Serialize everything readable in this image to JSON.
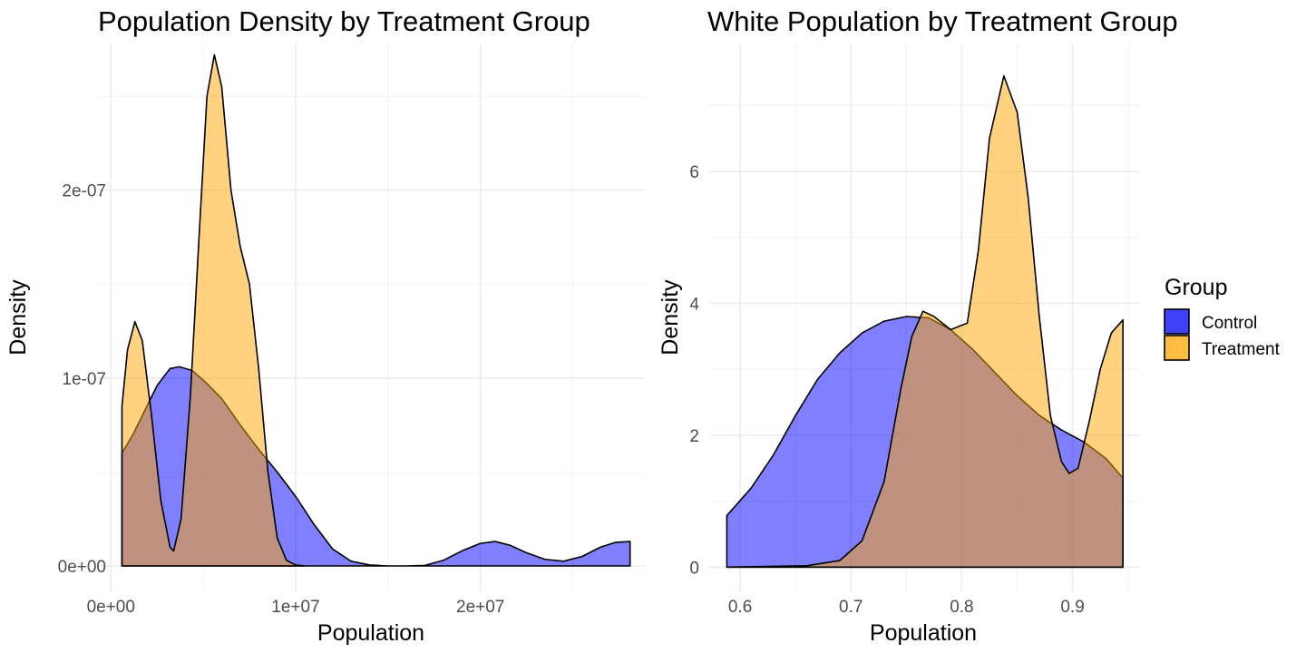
{
  "chart_data": [
    {
      "type": "area",
      "title": "Population Density by Treatment Group",
      "xlabel": "Population",
      "ylabel": "Density",
      "xlim": [
        -700000,
        28900000
      ],
      "ylim": [
        -1.4e-08,
        2.78e-07
      ],
      "x_ticks": [
        0,
        10000000,
        20000000
      ],
      "x_tick_labels": [
        "0e+00",
        "1e+07",
        "2e+07"
      ],
      "x_minor": [
        5000000,
        15000000,
        25000000
      ],
      "y_ticks": [
        0,
        1e-07,
        2e-07
      ],
      "y_tick_labels": [
        "0e+00",
        "1e-07",
        "2e-07"
      ],
      "y_minor": [
        5e-08,
        1.5e-07,
        2.5e-07
      ],
      "grid": true,
      "series": [
        {
          "name": "Control",
          "color": "#0000FF",
          "points": [
            [
              600000,
              6e-08
            ],
            [
              1200000,
              7e-08
            ],
            [
              1800000,
              8.2e-08
            ],
            [
              2500000,
              9.6e-08
            ],
            [
              3200000,
              1.05e-07
            ],
            [
              3700000,
              1.06e-07
            ],
            [
              4400000,
              1.04e-07
            ],
            [
              5100000,
              9.8e-08
            ],
            [
              6000000,
              8.9e-08
            ],
            [
              7000000,
              7.5e-08
            ],
            [
              8000000,
              6.2e-08
            ],
            [
              9000000,
              5e-08
            ],
            [
              10000000,
              3.7e-08
            ],
            [
              11000000,
              2.2e-08
            ],
            [
              12000000,
              9e-09
            ],
            [
              13000000,
              2.5e-09
            ],
            [
              14000000,
              5e-10
            ],
            [
              15000000,
              0.0
            ],
            [
              16000000,
              0.0
            ],
            [
              17000000,
              3e-10
            ],
            [
              18000000,
              3e-09
            ],
            [
              19000000,
              8e-09
            ],
            [
              20000000,
              1.2e-08
            ],
            [
              20800000,
              1.3e-08
            ],
            [
              21600000,
              1.1e-08
            ],
            [
              22500000,
              7e-09
            ],
            [
              23500000,
              3.5e-09
            ],
            [
              24500000,
              2.5e-09
            ],
            [
              25500000,
              5e-09
            ],
            [
              26500000,
              1e-08
            ],
            [
              27300000,
              1.25e-08
            ],
            [
              28100000,
              1.3e-08
            ]
          ]
        },
        {
          "name": "Treatment",
          "color": "#FFA500",
          "points": [
            [
              600000,
              8.5e-08
            ],
            [
              900000,
              1.15e-07
            ],
            [
              1300000,
              1.3e-07
            ],
            [
              1700000,
              1.2e-07
            ],
            [
              2200000,
              8e-08
            ],
            [
              2700000,
              3.5e-08
            ],
            [
              3200000,
              1e-08
            ],
            [
              3400000,
              8e-09
            ],
            [
              3800000,
              2.5e-08
            ],
            [
              4300000,
              9e-08
            ],
            [
              4800000,
              1.8e-07
            ],
            [
              5200000,
              2.5e-07
            ],
            [
              5600000,
              2.72e-07
            ],
            [
              6000000,
              2.55e-07
            ],
            [
              6500000,
              2e-07
            ],
            [
              7000000,
              1.7e-07
            ],
            [
              7500000,
              1.5e-07
            ],
            [
              8000000,
              1.05e-07
            ],
            [
              8500000,
              5e-08
            ],
            [
              9000000,
              1.5e-08
            ],
            [
              9500000,
              3e-09
            ],
            [
              10000000,
              5e-10
            ],
            [
              10500000,
              0.0
            ]
          ]
        }
      ]
    },
    {
      "type": "area",
      "title": "White Population by Treatment Group",
      "xlabel": "Population",
      "ylabel": "Density",
      "xlim": [
        0.5721,
        0.9601
      ],
      "ylim": [
        -0.381,
        7.94
      ],
      "x_ticks": [
        0.6,
        0.7,
        0.8,
        0.9
      ],
      "x_tick_labels": [
        "0.6",
        "0.7",
        "0.8",
        "0.9"
      ],
      "x_minor": [
        0.65,
        0.75,
        0.85,
        0.95
      ],
      "y_ticks": [
        0,
        2,
        4,
        6
      ],
      "y_tick_labels": [
        "0",
        "2",
        "4",
        "6"
      ],
      "y_minor": [
        1,
        3,
        5,
        7
      ],
      "grid": true,
      "series": [
        {
          "name": "Control",
          "color": "#0000FF",
          "points": [
            [
              0.588,
              0.78
            ],
            [
              0.61,
              1.2
            ],
            [
              0.63,
              1.7
            ],
            [
              0.65,
              2.3
            ],
            [
              0.67,
              2.85
            ],
            [
              0.69,
              3.25
            ],
            [
              0.71,
              3.55
            ],
            [
              0.73,
              3.73
            ],
            [
              0.75,
              3.8
            ],
            [
              0.77,
              3.78
            ],
            [
              0.79,
              3.6
            ],
            [
              0.81,
              3.3
            ],
            [
              0.83,
              2.95
            ],
            [
              0.85,
              2.6
            ],
            [
              0.87,
              2.3
            ],
            [
              0.89,
              2.08
            ],
            [
              0.91,
              1.9
            ],
            [
              0.93,
              1.65
            ],
            [
              0.9455,
              1.35
            ]
          ]
        },
        {
          "name": "Treatment",
          "color": "#FFA500",
          "points": [
            [
              0.588,
              0.0
            ],
            [
              0.66,
              0.02
            ],
            [
              0.69,
              0.1
            ],
            [
              0.71,
              0.4
            ],
            [
              0.73,
              1.3
            ],
            [
              0.745,
              2.7
            ],
            [
              0.755,
              3.5
            ],
            [
              0.765,
              3.88
            ],
            [
              0.775,
              3.8
            ],
            [
              0.79,
              3.6
            ],
            [
              0.805,
              3.7
            ],
            [
              0.815,
              4.8
            ],
            [
              0.825,
              6.5
            ],
            [
              0.838,
              7.45
            ],
            [
              0.85,
              6.9
            ],
            [
              0.86,
              5.6
            ],
            [
              0.87,
              3.8
            ],
            [
              0.88,
              2.3
            ],
            [
              0.89,
              1.6
            ],
            [
              0.897,
              1.42
            ],
            [
              0.905,
              1.5
            ],
            [
              0.915,
              2.2
            ],
            [
              0.925,
              3.0
            ],
            [
              0.935,
              3.55
            ],
            [
              0.9455,
              3.75
            ]
          ]
        }
      ]
    }
  ],
  "legend": {
    "title": "Group",
    "items": [
      {
        "label": "Control",
        "color": "#0000FF"
      },
      {
        "label": "Treatment",
        "color": "#FFA500"
      }
    ]
  }
}
